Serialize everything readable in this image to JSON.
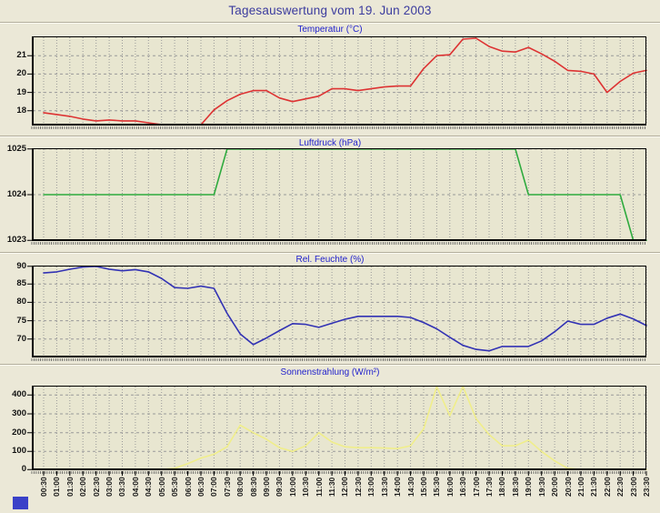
{
  "page": {
    "title": "Tagesauswertung vom 19. Jun 2003"
  },
  "colors": {
    "page_bg": "#ebe8d7",
    "plot_bg": "#e8e6d0",
    "grid": "#999999",
    "frame": "#000000",
    "main_title": "#3b3b9e",
    "chart_title": "#2222cc",
    "tick_text": "#111111",
    "temperature_line": "#dd3333",
    "pressure_line": "#2eaa3e",
    "humidity_line": "#3232b4",
    "solar_line": "#f0ee8a",
    "footer_square": "#3a41c8"
  },
  "x_labels": [
    "00:30",
    "01:00",
    "01:30",
    "02:00",
    "02:30",
    "03:00",
    "03:30",
    "04:00",
    "04:30",
    "05:00",
    "05:30",
    "06:00",
    "06:30",
    "07:00",
    "07:30",
    "08:00",
    "08:30",
    "09:00",
    "09:30",
    "10:00",
    "10:30",
    "11:00",
    "11:30",
    "12:00",
    "12:30",
    "13:00",
    "13:30",
    "14:00",
    "14:30",
    "15:00",
    "15:30",
    "16:00",
    "16:30",
    "17:00",
    "17:30",
    "18:00",
    "18:30",
    "19:00",
    "19:30",
    "20:00",
    "20:30",
    "21:00",
    "21:30",
    "22:00",
    "22:30",
    "23:00",
    "23:30"
  ],
  "chart_data": [
    {
      "type": "line",
      "title": "Temperatur (°C)",
      "color": "#dd3333",
      "ylim": [
        17.2,
        22.05
      ],
      "yticks": [
        21,
        20,
        19,
        18
      ],
      "grid": true,
      "legend": "none",
      "values": [
        17.9,
        17.8,
        17.7,
        17.55,
        17.45,
        17.5,
        17.45,
        17.45,
        17.35,
        17.25,
        17.25,
        17.2,
        17.2,
        18.05,
        18.55,
        18.9,
        19.1,
        19.1,
        18.7,
        18.5,
        18.65,
        18.8,
        19.2,
        19.2,
        19.1,
        19.2,
        19.3,
        19.35,
        19.35,
        20.3,
        21.0,
        21.05,
        21.9,
        21.95,
        21.5,
        21.25,
        21.2,
        21.45,
        21.1,
        20.7,
        20.2,
        20.15,
        20.0,
        19.0,
        19.6,
        20.05,
        20.2
      ]
    },
    {
      "type": "line",
      "title": "Luftdruck (hPa)",
      "color": "#2eaa3e",
      "ylim": [
        1023,
        1025
      ],
      "yticks": [
        1025,
        1024,
        1023
      ],
      "grid": true,
      "legend": "none",
      "values": [
        1024,
        1024,
        1024,
        1024,
        1024,
        1024,
        1024,
        1024,
        1024,
        1024,
        1024,
        1024,
        1024,
        1024,
        1025,
        1025,
        1025,
        1025,
        1025,
        1025,
        1025,
        1025,
        1025,
        1025,
        1025,
        1025,
        1025,
        1025,
        1025,
        1025,
        1025,
        1025,
        1025,
        1025,
        1025,
        1025,
        1025,
        1024,
        1024,
        1024,
        1024,
        1024,
        1024,
        1024,
        1024,
        1023,
        1023
      ]
    },
    {
      "type": "line",
      "title": "Rel. Feuchte (%)",
      "color": "#3232b4",
      "ylim": [
        65,
        90
      ],
      "yticks": [
        90,
        85,
        80,
        75,
        70
      ],
      "grid": true,
      "legend": "none",
      "values": [
        88,
        88.3,
        89,
        89.6,
        89.9,
        89,
        88.6,
        88.9,
        88.3,
        86.5,
        84,
        83.8,
        84.4,
        83.8,
        77,
        71.4,
        68.5,
        70.3,
        72.3,
        74.2,
        74,
        73.2,
        74.3,
        75.4,
        76.2,
        76.2,
        76.2,
        76.2,
        75.9,
        74.5,
        72.8,
        70.5,
        68.3,
        67.2,
        66.8,
        68,
        68,
        68,
        69.5,
        72,
        74.9,
        74,
        74,
        75.7,
        76.8,
        75.5,
        73.7
      ]
    },
    {
      "type": "line",
      "title": "Sonnenstrahlung (W/m²)",
      "color": "#f0ee8a",
      "ylim": [
        0,
        450
      ],
      "yticks": [
        400,
        300,
        200,
        100,
        0
      ],
      "grid": true,
      "legend": "none",
      "values": [
        0,
        0,
        0,
        0,
        0,
        0,
        0,
        0,
        0,
        0,
        10,
        35,
        65,
        85,
        125,
        240,
        200,
        165,
        120,
        100,
        130,
        200,
        150,
        125,
        120,
        120,
        118,
        115,
        130,
        220,
        445,
        290,
        450,
        275,
        190,
        130,
        130,
        160,
        100,
        50,
        10,
        0,
        0,
        0,
        0,
        0,
        0
      ]
    }
  ]
}
